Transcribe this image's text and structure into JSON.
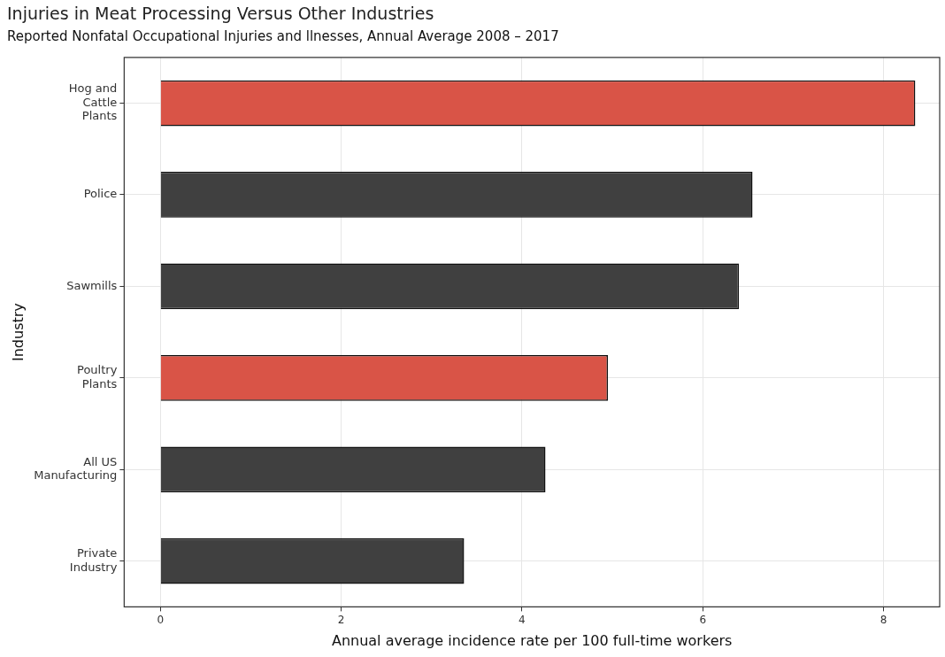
{
  "chart_data": {
    "type": "bar",
    "orientation": "horizontal",
    "title": "Injuries in Meat Processing Versus Other Industries",
    "subtitle": "Reported Nonfatal Occupational Injuries and llnesses, Annual Average 2008 – 2017",
    "xlabel": "Annual average incidence rate per 100 full-time workers",
    "ylabel": "Industry",
    "categories": [
      "Hog and\nCattle\nPlants",
      "Police",
      "Sawmills",
      "Poultry\nPlants",
      "All US\nManufacturing",
      "Private\nIndustry"
    ],
    "values": [
      8.35,
      6.55,
      6.4,
      4.95,
      4.26,
      3.36
    ],
    "colors": [
      "#d95447",
      "#404040",
      "#404040",
      "#d95447",
      "#404040",
      "#404040"
    ],
    "xlim": [
      -0.4,
      8.62
    ],
    "xticks": [
      0,
      2,
      4,
      6,
      8
    ],
    "grid": true,
    "legend": false
  }
}
